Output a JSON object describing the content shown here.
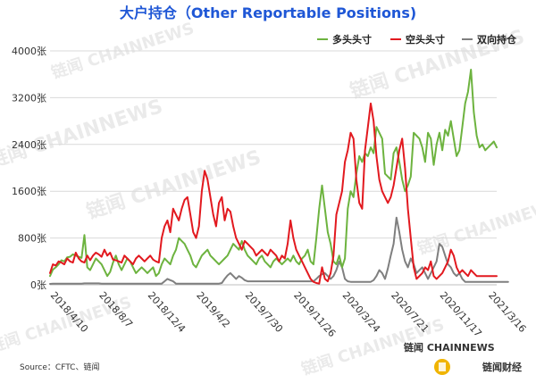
{
  "chart_data": {
    "type": "line",
    "title": "大户持仓（Other Reportable Positions)",
    "ylim": [
      0,
      4000
    ],
    "y_ticks": [
      "0张",
      "800张",
      "1600张",
      "2400张",
      "3200张",
      "4000张"
    ],
    "y_tick_values": [
      0,
      800,
      1600,
      2400,
      3200,
      4000
    ],
    "x_tick_labels": [
      "2018/4/10",
      "2018/8/7",
      "2018/12/4",
      "2019/4/2",
      "2019/7/30",
      "2019/11/26",
      "2020/3/24",
      "2020/7/21",
      "2020/11/17",
      "2021/3/16"
    ],
    "x_count": 157,
    "x_tick_index_step": 17,
    "legend_position": "top-right",
    "grid": "horizontal",
    "series": [
      {
        "name": "多头头寸",
        "color": "#6db33f",
        "values": [
          150,
          260,
          300,
          350,
          420,
          400,
          470,
          480,
          520,
          500,
          480,
          460,
          850,
          300,
          250,
          350,
          450,
          400,
          350,
          250,
          150,
          220,
          380,
          500,
          350,
          250,
          350,
          450,
          400,
          300,
          200,
          250,
          300,
          250,
          200,
          250,
          300,
          150,
          200,
          350,
          450,
          400,
          350,
          500,
          600,
          800,
          750,
          700,
          600,
          500,
          350,
          300,
          400,
          500,
          550,
          600,
          500,
          450,
          400,
          350,
          400,
          450,
          500,
          600,
          700,
          650,
          600,
          750,
          600,
          500,
          450,
          400,
          350,
          450,
          500,
          400,
          350,
          300,
          400,
          450,
          400,
          350,
          400,
          450,
          400,
          500,
          400,
          350,
          450,
          500,
          600,
          400,
          350,
          800,
          1300,
          1700,
          1300,
          900,
          700,
          400,
          350,
          500,
          300,
          450,
          1300,
          1600,
          1500,
          1900,
          2200,
          2100,
          2250,
          2200,
          2350,
          2250,
          2700,
          2600,
          2500,
          1900,
          1850,
          1800,
          2250,
          2350,
          2100,
          1800,
          1600,
          1700,
          1850,
          2600,
          2550,
          2500,
          2350,
          2100,
          2600,
          2500,
          2050,
          2400,
          2600,
          2300,
          2650,
          2550,
          2800,
          2500,
          2200,
          2300,
          2700,
          3100,
          3300,
          3680,
          2950,
          2550,
          2350,
          2400,
          2300,
          2350,
          2400,
          2450,
          2350
        ]
      },
      {
        "name": "空头头寸",
        "color": "#e2191f",
        "values": [
          200,
          350,
          330,
          400,
          380,
          350,
          450,
          400,
          380,
          550,
          450,
          400,
          380,
          500,
          420,
          500,
          550,
          520,
          480,
          600,
          500,
          550,
          430,
          420,
          400,
          380,
          500,
          450,
          400,
          350,
          450,
          500,
          450,
          400,
          450,
          500,
          430,
          400,
          380,
          800,
          1000,
          1100,
          900,
          1300,
          1200,
          1100,
          1300,
          1450,
          1500,
          1200,
          900,
          800,
          1000,
          1600,
          1950,
          1800,
          1500,
          1200,
          1000,
          1400,
          1500,
          1100,
          1300,
          1250,
          1000,
          800,
          700,
          600,
          750,
          700,
          650,
          600,
          500,
          550,
          600,
          550,
          500,
          600,
          550,
          500,
          400,
          500,
          450,
          700,
          1100,
          800,
          600,
          500,
          400,
          300,
          200,
          100,
          50,
          30,
          20,
          300,
          100,
          60,
          200,
          500,
          1200,
          1400,
          1600,
          2100,
          2300,
          2600,
          2500,
          1800,
          1400,
          1300,
          2300,
          2700,
          3100,
          2800,
          2200,
          1800,
          1600,
          1500,
          1400,
          1500,
          1700,
          2000,
          2300,
          2500,
          2000,
          1300,
          800,
          300,
          100,
          150,
          200,
          300,
          250,
          400,
          150,
          100,
          150,
          200,
          300,
          400,
          600,
          500,
          300,
          200,
          250,
          200,
          150,
          250,
          200,
          150,
          150,
          150,
          150,
          150,
          150,
          150,
          150
        ]
      },
      {
        "name": "双向持仓",
        "color": "#7f7f7f",
        "values": [
          15,
          20,
          20,
          20,
          20,
          20,
          20,
          20,
          20,
          20,
          20,
          20,
          25,
          25,
          25,
          25,
          25,
          25,
          20,
          20,
          20,
          20,
          20,
          20,
          20,
          20,
          20,
          20,
          20,
          20,
          20,
          20,
          20,
          20,
          20,
          20,
          20,
          20,
          20,
          20,
          60,
          100,
          80,
          60,
          20,
          20,
          20,
          20,
          20,
          20,
          20,
          20,
          20,
          20,
          20,
          20,
          20,
          20,
          20,
          20,
          30,
          100,
          160,
          200,
          150,
          100,
          150,
          120,
          80,
          60,
          60,
          60,
          60,
          60,
          60,
          60,
          60,
          60,
          60,
          60,
          60,
          60,
          60,
          60,
          60,
          60,
          60,
          60,
          60,
          60,
          60,
          60,
          60,
          100,
          150,
          180,
          200,
          150,
          100,
          150,
          250,
          400,
          300,
          100,
          60,
          50,
          50,
          50,
          50,
          50,
          50,
          50,
          50,
          80,
          150,
          250,
          200,
          100,
          280,
          500,
          700,
          1150,
          900,
          600,
          400,
          300,
          450,
          350,
          200,
          250,
          300,
          200,
          100,
          200,
          300,
          400,
          700,
          650,
          500,
          350,
          300,
          200,
          150,
          200,
          100,
          50,
          50,
          50,
          50,
          50,
          50,
          50,
          50,
          50,
          50,
          50,
          50,
          50,
          50,
          50,
          50
        ]
      }
    ]
  },
  "source": "Source：CFTC、链闻",
  "watermark": "链闻 CHAINNEWS",
  "brand": {
    "name": "链闻 CHAINNEWS",
    "secondary": "链闻财经"
  }
}
